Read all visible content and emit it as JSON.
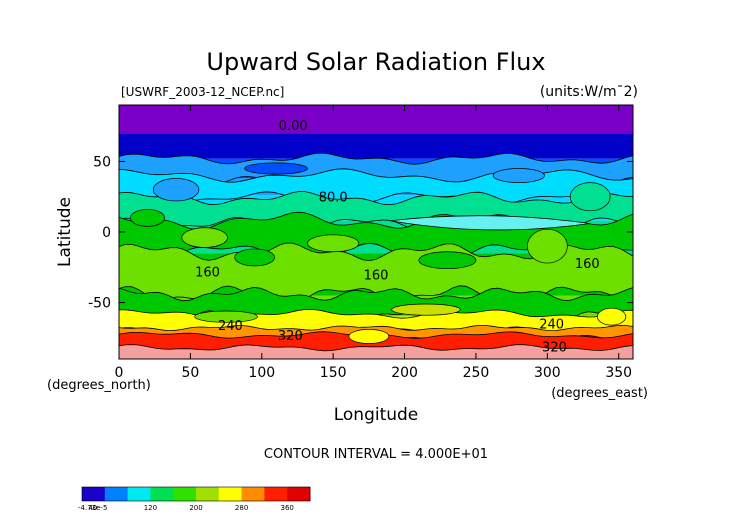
{
  "chart_data": {
    "type": "heatmap",
    "title": "Upward Solar Radiation Flux",
    "file_label": "[USWRF_2003-12_NCEP.nc]",
    "units_label": "(units:W/m^2)",
    "xlabel": "Longitude",
    "ylabel": "Latitude",
    "x_unit_label": "(degrees_east)",
    "y_unit_label": "(degrees_north)",
    "xlim": [
      0,
      360
    ],
    "ylim": [
      -90,
      90
    ],
    "x_ticks": [
      0,
      50,
      100,
      150,
      200,
      250,
      300,
      350
    ],
    "y_ticks": [
      50,
      0,
      -50
    ],
    "contour_interval_text": "CONTOUR INTERVAL = 4.000E+01",
    "contour_labels": [
      {
        "text": "0.00",
        "lon": 122,
        "lat": 76
      },
      {
        "text": "80.0",
        "lon": 150,
        "lat": 25
      },
      {
        "text": "160",
        "lon": 62,
        "lat": -28
      },
      {
        "text": "160",
        "lon": 180,
        "lat": -30
      },
      {
        "text": "160",
        "lon": 328,
        "lat": -22
      },
      {
        "text": "240",
        "lon": 78,
        "lat": -66
      },
      {
        "text": "240",
        "lon": 303,
        "lat": -65
      },
      {
        "text": "320",
        "lon": 120,
        "lat": -73
      },
      {
        "text": "320",
        "lon": 305,
        "lat": -81
      }
    ],
    "latitude_bands": [
      {
        "lat_from": 90,
        "lat_to": 70,
        "value": 0
      },
      {
        "lat_from": 70,
        "lat_to": 52,
        "value": 20
      },
      {
        "lat_from": 52,
        "lat_to": 38,
        "value": 55
      },
      {
        "lat_from": 38,
        "lat_to": 26,
        "value": 75
      },
      {
        "lat_from": 26,
        "lat_to": 8,
        "value": 95
      },
      {
        "lat_from": 8,
        "lat_to": -15,
        "value": 135
      },
      {
        "lat_from": -15,
        "lat_to": -45,
        "value": 160
      },
      {
        "lat_from": -45,
        "lat_to": -60,
        "value": 190
      },
      {
        "lat_from": -60,
        "lat_to": -70,
        "value": 250
      },
      {
        "lat_from": -70,
        "lat_to": -80,
        "value": 330
      },
      {
        "lat_from": -80,
        "lat_to": -90,
        "value": 380
      }
    ],
    "colorbar": {
      "labels": [
        "-4.73e-5",
        "40",
        "120",
        "200",
        "280",
        "360"
      ],
      "stops": [
        {
          "value": 0,
          "color": "#1a00c8"
        },
        {
          "value": 40,
          "color": "#0080ff"
        },
        {
          "value": 80,
          "color": "#00e8f0"
        },
        {
          "value": 120,
          "color": "#00e050"
        },
        {
          "value": 160,
          "color": "#30e000"
        },
        {
          "value": 200,
          "color": "#a0e000"
        },
        {
          "value": 240,
          "color": "#ffff00"
        },
        {
          "value": 280,
          "color": "#ff8c00"
        },
        {
          "value": 320,
          "color": "#ff2000"
        },
        {
          "value": 360,
          "color": "#e00000"
        },
        {
          "value": 400,
          "color": "#f5a0a0"
        }
      ]
    },
    "colors": {
      "purple_band": "#7a00c8",
      "dark_blue": "#0000c8",
      "blue": "#0050ff",
      "light_blue": "#1ea0ff",
      "cyan": "#00dcff",
      "light_cyan": "#66f0f0",
      "teal": "#00e090",
      "green": "#00c800",
      "light_green": "#6ee000",
      "yellow_green": "#c8e000",
      "yellow": "#ffff00",
      "orange": "#ff9600",
      "red": "#ff1e00",
      "pink": "#f5a0a0"
    }
  }
}
